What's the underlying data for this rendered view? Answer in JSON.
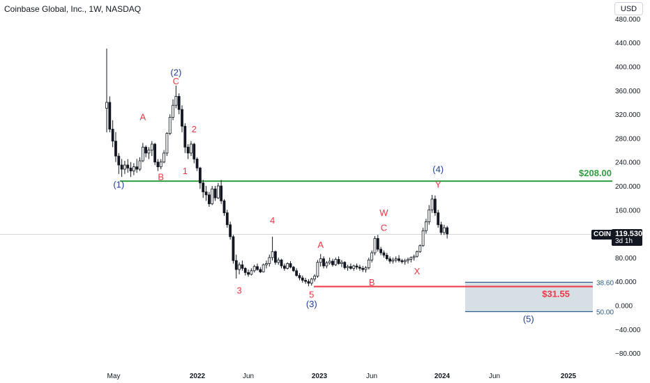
{
  "header": {
    "title": "Coinbase Global, Inc., 1W, NASDAQ",
    "currency_button": "USD"
  },
  "price_scale": {
    "ticks": [
      "−80.000",
      "−40.000",
      "0.000",
      "40.000",
      "80.000",
      "120.000",
      "160.000",
      "200.000",
      "240.000",
      "280.000",
      "320.000",
      "360.000",
      "400.000",
      "440.000",
      "480.000"
    ]
  },
  "time_scale": {
    "ticks": [
      "May",
      "2022",
      "Jun",
      "2023",
      "Jun",
      "2024",
      "Jun",
      "2025"
    ]
  },
  "last_price": {
    "symbol": "COIN",
    "value": "119.530",
    "countdown": "3d 1h"
  },
  "levels": {
    "resistance": {
      "label": "$208.00",
      "value": 208.0,
      "color": "#2e9e3f"
    },
    "support": {
      "label": "$31.55",
      "value": 31.55,
      "color": "#f23645"
    }
  },
  "fib_levels": [
    {
      "label": "38.60",
      "value": 38.6
    },
    {
      "label": "50.00",
      "value": -10.5
    }
  ],
  "colors": {
    "candle": "#131722",
    "wave_blue": "#1f3e9e",
    "wave_red": "#f23645",
    "fib_line": "#2a5d8f",
    "fib_fill": "#d6dfe3"
  },
  "wave_labels": [
    {
      "text": "(1)",
      "color": "blue",
      "date_index": 4,
      "price": 197
    },
    {
      "text": "(2)",
      "color": "blue",
      "date_index": 23,
      "price": 385
    },
    {
      "text": "C",
      "color": "red",
      "date_index": 23,
      "price": 370
    },
    {
      "text": "A",
      "color": "red",
      "date_index": 12,
      "price": 310
    },
    {
      "text": "B",
      "color": "red",
      "date_index": 18,
      "price": 210
    },
    {
      "text": "2",
      "color": "red",
      "date_index": 29,
      "price": 290
    },
    {
      "text": "1",
      "color": "red",
      "date_index": 26,
      "price": 220
    },
    {
      "text": "3",
      "color": "red",
      "date_index": 44,
      "price": 20
    },
    {
      "text": "4",
      "color": "red",
      "date_index": 55,
      "price": 137
    },
    {
      "text": "5",
      "color": "red",
      "date_index": 68,
      "price": 13
    },
    {
      "text": "(3)",
      "color": "blue",
      "date_index": 68,
      "price": -3
    },
    {
      "text": "A",
      "color": "red",
      "date_index": 71,
      "price": 96
    },
    {
      "text": "B",
      "color": "red",
      "date_index": 88,
      "price": 33
    },
    {
      "text": "W",
      "color": "red",
      "date_index": 92,
      "price": 150
    },
    {
      "text": "C",
      "color": "red",
      "date_index": 92,
      "price": 125
    },
    {
      "text": "X",
      "color": "red",
      "date_index": 103,
      "price": 52
    },
    {
      "text": "(4)",
      "color": "blue",
      "date_index": 110,
      "price": 223
    },
    {
      "text": "Y",
      "color": "red",
      "date_index": 110,
      "price": 197
    },
    {
      "text": "(5)",
      "color": "blue",
      "date_index": 140,
      "price": -28
    }
  ],
  "chart_data": {
    "type": "candlestick",
    "title": "Coinbase Global, Inc., 1W, NASDAQ",
    "ylim": [
      -84,
      484
    ],
    "x_start": "2021-04-12",
    "x_step": "1 week",
    "ohlc": [
      [
        330,
        430,
        290,
        340
      ],
      [
        340,
        350,
        290,
        295
      ],
      [
        295,
        310,
        265,
        275
      ],
      [
        275,
        290,
        240,
        250
      ],
      [
        250,
        255,
        220,
        235
      ],
      [
        235,
        245,
        215,
        228
      ],
      [
        228,
        242,
        220,
        235
      ],
      [
        235,
        245,
        222,
        230
      ],
      [
        230,
        240,
        215,
        225
      ],
      [
        225,
        238,
        218,
        232
      ],
      [
        232,
        245,
        222,
        228
      ],
      [
        228,
        248,
        225,
        242
      ],
      [
        242,
        272,
        240,
        265
      ],
      [
        265,
        268,
        248,
        255
      ],
      [
        255,
        265,
        245,
        260
      ],
      [
        260,
        275,
        250,
        270
      ],
      [
        270,
        272,
        235,
        240
      ],
      [
        240,
        245,
        225,
        232
      ],
      [
        232,
        245,
        228,
        240
      ],
      [
        240,
        260,
        238,
        255
      ],
      [
        255,
        290,
        250,
        288
      ],
      [
        288,
        320,
        285,
        315
      ],
      [
        315,
        345,
        310,
        335
      ],
      [
        335,
        368,
        330,
        350
      ],
      [
        350,
        355,
        320,
        328
      ],
      [
        328,
        335,
        290,
        300
      ],
      [
        300,
        305,
        255,
        265
      ],
      [
        265,
        270,
        245,
        255
      ],
      [
        255,
        275,
        250,
        270
      ],
      [
        270,
        272,
        238,
        245
      ],
      [
        245,
        248,
        225,
        230
      ],
      [
        230,
        232,
        195,
        205
      ],
      [
        205,
        210,
        180,
        190
      ],
      [
        190,
        200,
        175,
        185
      ],
      [
        185,
        190,
        165,
        170
      ],
      [
        170,
        200,
        168,
        195
      ],
      [
        195,
        200,
        175,
        180
      ],
      [
        180,
        205,
        178,
        200
      ],
      [
        200,
        210,
        170,
        175
      ],
      [
        175,
        178,
        150,
        155
      ],
      [
        155,
        160,
        130,
        135
      ],
      [
        135,
        140,
        110,
        115
      ],
      [
        115,
        118,
        70,
        75
      ],
      [
        75,
        85,
        45,
        60
      ],
      [
        60,
        72,
        52,
        68
      ],
      [
        68,
        75,
        58,
        62
      ],
      [
        62,
        64,
        50,
        55
      ],
      [
        55,
        60,
        48,
        52
      ],
      [
        52,
        62,
        50,
        58
      ],
      [
        58,
        68,
        55,
        65
      ],
      [
        65,
        70,
        58,
        60
      ],
      [
        60,
        64,
        54,
        56
      ],
      [
        56,
        70,
        55,
        68
      ],
      [
        68,
        75,
        62,
        70
      ],
      [
        70,
        85,
        65,
        80
      ],
      [
        80,
        115,
        75,
        90
      ],
      [
        90,
        92,
        68,
        72
      ],
      [
        72,
        80,
        68,
        76
      ],
      [
        76,
        78,
        62,
        66
      ],
      [
        66,
        70,
        58,
        62
      ],
      [
        62,
        72,
        60,
        70
      ],
      [
        70,
        74,
        62,
        64
      ],
      [
        64,
        66,
        56,
        58
      ],
      [
        58,
        62,
        48,
        50
      ],
      [
        50,
        54,
        42,
        46
      ],
      [
        46,
        50,
        38,
        42
      ],
      [
        42,
        46,
        36,
        40
      ],
      [
        40,
        44,
        32,
        37
      ],
      [
        37,
        46,
        33,
        44
      ],
      [
        44,
        52,
        40,
        49
      ],
      [
        49,
        76,
        46,
        72
      ],
      [
        72,
        86,
        65,
        78
      ],
      [
        78,
        82,
        62,
        66
      ],
      [
        66,
        74,
        62,
        71
      ],
      [
        71,
        80,
        68,
        74
      ],
      [
        74,
        78,
        65,
        68
      ],
      [
        68,
        80,
        66,
        77
      ],
      [
        77,
        82,
        68,
        70
      ],
      [
        70,
        76,
        64,
        72
      ],
      [
        72,
        74,
        60,
        63
      ],
      [
        63,
        68,
        58,
        65
      ],
      [
        65,
        70,
        60,
        62
      ],
      [
        62,
        68,
        58,
        66
      ],
      [
        66,
        70,
        60,
        64
      ],
      [
        64,
        68,
        58,
        62
      ],
      [
        62,
        66,
        56,
        60
      ],
      [
        60,
        66,
        55,
        63
      ],
      [
        63,
        80,
        60,
        76
      ],
      [
        76,
        92,
        72,
        88
      ],
      [
        88,
        116,
        84,
        112
      ],
      [
        112,
        118,
        90,
        94
      ],
      [
        94,
        98,
        84,
        88
      ],
      [
        88,
        92,
        80,
        84
      ],
      [
        84,
        88,
        75,
        78
      ],
      [
        78,
        82,
        70,
        74
      ],
      [
        74,
        80,
        70,
        76
      ],
      [
        76,
        82,
        72,
        78
      ],
      [
        78,
        84,
        72,
        75
      ],
      [
        75,
        78,
        70,
        73
      ],
      [
        73,
        78,
        68,
        75
      ],
      [
        75,
        80,
        70,
        77
      ],
      [
        77,
        82,
        72,
        80
      ],
      [
        80,
        85,
        75,
        82
      ],
      [
        82,
        92,
        80,
        90
      ],
      [
        90,
        102,
        88,
        100
      ],
      [
        100,
        130,
        98,
        125
      ],
      [
        125,
        145,
        120,
        140
      ],
      [
        140,
        168,
        135,
        160
      ],
      [
        160,
        185,
        155,
        178
      ],
      [
        178,
        184,
        150,
        155
      ],
      [
        155,
        160,
        130,
        135
      ],
      [
        135,
        140,
        118,
        122
      ],
      [
        122,
        135,
        118,
        130
      ],
      [
        130,
        133,
        112,
        119.53
      ]
    ]
  }
}
